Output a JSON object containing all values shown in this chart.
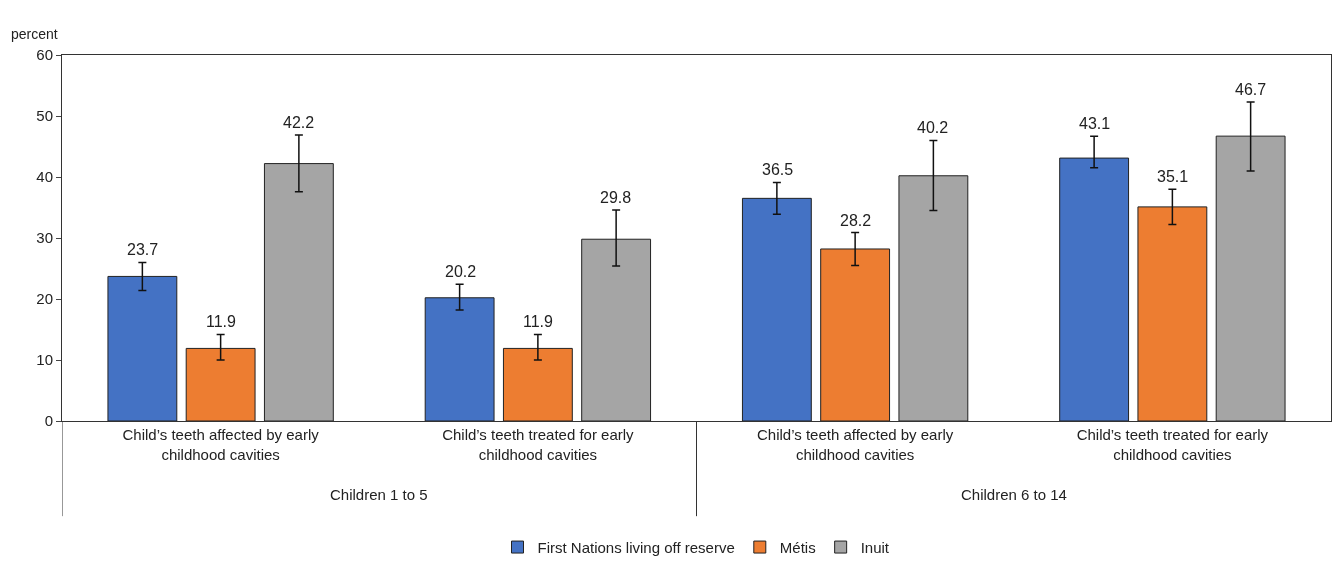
{
  "chart_data": {
    "type": "bar",
    "ylabel": "percent",
    "categories": [
      "Child’s teeth affected by early childhood cavities",
      "Child’s teeth treated for early childhood cavities",
      "Child’s teeth affected by early childhood cavities",
      "Child’s teeth treated for early childhood cavities"
    ],
    "series": [
      {
        "name": "First Nations living off reserve",
        "color": "#4472c4",
        "values": [
          23.7,
          20.2,
          36.5,
          43.1
        ],
        "errors": [
          [
            21.4,
            26.0
          ],
          [
            18.2,
            22.4
          ],
          [
            33.9,
            39.1
          ],
          [
            41.5,
            46.7
          ]
        ]
      },
      {
        "name": "Métis",
        "color": "#ed7d31",
        "values": [
          11.9,
          11.9,
          28.2,
          35.1
        ],
        "errors": [
          [
            10.0,
            14.2
          ],
          [
            10.0,
            14.2
          ],
          [
            25.5,
            30.9
          ],
          [
            32.2,
            38.0
          ]
        ]
      },
      {
        "name": "Inuit",
        "color": "#a5a5a5",
        "values": [
          42.2,
          29.8,
          40.2,
          46.7
        ],
        "errors": [
          [
            37.6,
            46.9
          ],
          [
            25.4,
            34.6
          ],
          [
            34.5,
            46.0
          ],
          [
            41.0,
            52.3
          ]
        ]
      }
    ],
    "annotations": [
      "Children 1 to 5",
      "Children 6 to 14"
    ],
    "ylim": [
      0,
      60
    ],
    "yticks": [
      0,
      10,
      20,
      30,
      40,
      50,
      60
    ],
    "data_labels": true,
    "legend": "bottom"
  }
}
